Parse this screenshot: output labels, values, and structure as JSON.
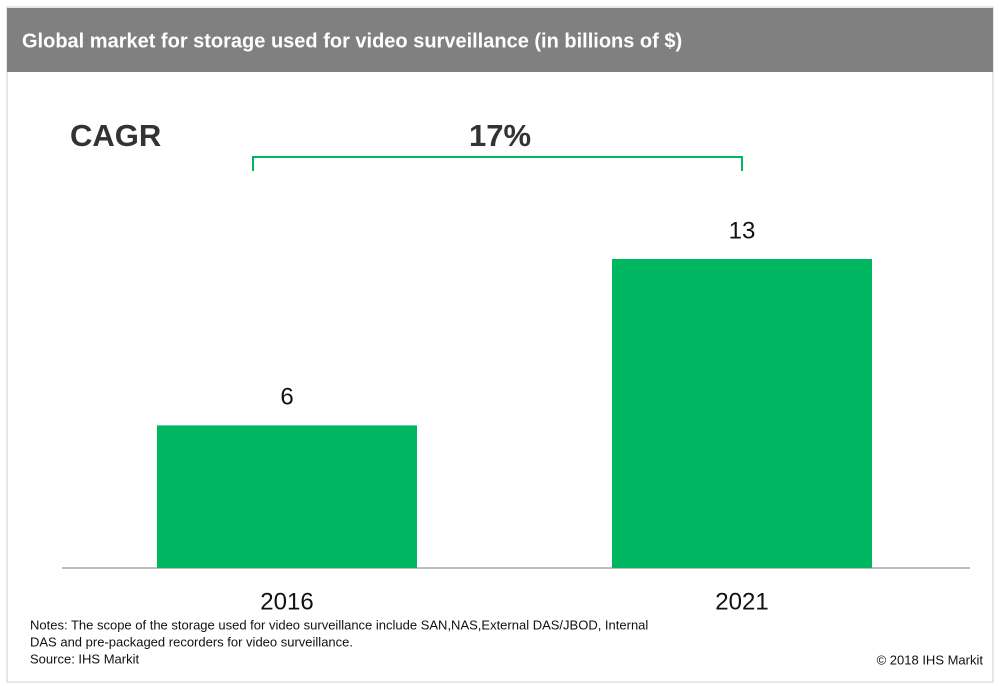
{
  "chart_data": {
    "type": "bar",
    "title": "Global market for storage used for video surveillance (in billions of $)",
    "annotations": {
      "cagr_label": "CAGR",
      "cagr_value": "17%"
    },
    "categories": [
      "2016",
      "2021"
    ],
    "values": [
      6,
      13
    ],
    "color": "#00b660",
    "notes": [
      "Notes: The scope of the storage used for video surveillance include SAN,NAS,External DAS/JBOD, Internal",
      "DAS and pre-packaged recorders for video surveillance.",
      "Source: IHS Markit"
    ],
    "copyright": "© 2018 IHS Markit"
  }
}
